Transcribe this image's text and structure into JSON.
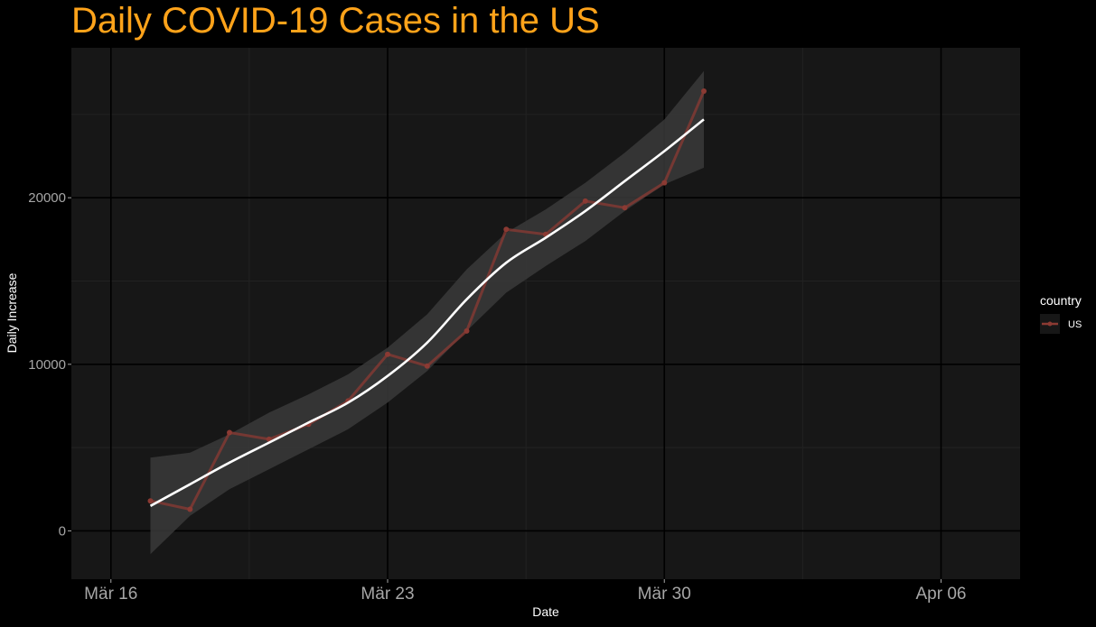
{
  "chart_data": {
    "type": "line",
    "title": "Daily COVID-19 Cases in the US",
    "xlabel": "Date",
    "ylabel": "Daily Increase",
    "x_ticks": [
      {
        "label": "Mär 16",
        "date": "2020-03-16"
      },
      {
        "label": "Mär 23",
        "date": "2020-03-23"
      },
      {
        "label": "Mär 30",
        "date": "2020-03-30"
      },
      {
        "label": "Apr 06",
        "date": "2020-04-06"
      }
    ],
    "y_ticks": [
      0,
      10000,
      20000
    ],
    "xlim": [
      "2020-03-15",
      "2020-04-08"
    ],
    "ylim": [
      -2900,
      29000
    ],
    "grid": true,
    "legend": {
      "title": "country",
      "placement": "right"
    },
    "series": [
      {
        "name": "US",
        "color": "#8b3a33",
        "points": [
          {
            "x": "2020-03-17",
            "y": 1800
          },
          {
            "x": "2020-03-18",
            "y": 1300
          },
          {
            "x": "2020-03-19",
            "y": 5900
          },
          {
            "x": "2020-03-20",
            "y": 5500
          },
          {
            "x": "2020-03-21",
            "y": 6400
          },
          {
            "x": "2020-03-22",
            "y": 7800
          },
          {
            "x": "2020-03-23",
            "y": 10600
          },
          {
            "x": "2020-03-24",
            "y": 9900
          },
          {
            "x": "2020-03-25",
            "y": 12000
          },
          {
            "x": "2020-03-26",
            "y": 18100
          },
          {
            "x": "2020-03-27",
            "y": 17800
          },
          {
            "x": "2020-03-28",
            "y": 19800
          },
          {
            "x": "2020-03-29",
            "y": 19400
          },
          {
            "x": "2020-03-30",
            "y": 20900
          },
          {
            "x": "2020-03-31",
            "y": 26400
          }
        ]
      }
    ],
    "smooth": {
      "color": "#ffffff",
      "band_color": "#3a3a3a",
      "points": [
        {
          "x": "2020-03-17",
          "y": 1500,
          "lo": -1400,
          "hi": 4400
        },
        {
          "x": "2020-03-18",
          "y": 2800,
          "lo": 900,
          "hi": 4700
        },
        {
          "x": "2020-03-19",
          "y": 4100,
          "lo": 2500,
          "hi": 5800
        },
        {
          "x": "2020-03-20",
          "y": 5300,
          "lo": 3700,
          "hi": 7100
        },
        {
          "x": "2020-03-21",
          "y": 6500,
          "lo": 4900,
          "hi": 8200
        },
        {
          "x": "2020-03-22",
          "y": 7700,
          "lo": 6100,
          "hi": 9400
        },
        {
          "x": "2020-03-23",
          "y": 9300,
          "lo": 7700,
          "hi": 11000
        },
        {
          "x": "2020-03-24",
          "y": 11300,
          "lo": 9600,
          "hi": 13000
        },
        {
          "x": "2020-03-25",
          "y": 13900,
          "lo": 12000,
          "hi": 15700
        },
        {
          "x": "2020-03-26",
          "y": 16100,
          "lo": 14300,
          "hi": 17900
        },
        {
          "x": "2020-03-27",
          "y": 17600,
          "lo": 15900,
          "hi": 19300
        },
        {
          "x": "2020-03-28",
          "y": 19200,
          "lo": 17400,
          "hi": 20900
        },
        {
          "x": "2020-03-29",
          "y": 21000,
          "lo": 19200,
          "hi": 22700
        },
        {
          "x": "2020-03-30",
          "y": 22800,
          "lo": 20800,
          "hi": 24700
        },
        {
          "x": "2020-03-31",
          "y": 24700,
          "lo": 21800,
          "hi": 27600
        }
      ]
    }
  },
  "colors": {
    "background": "#000000",
    "panel": "#171717",
    "grid_major": "#000000",
    "grid_minor": "#222222",
    "title": "#ffa31a",
    "axis_text": "#a6a6a6",
    "axis_title": "#ffffff"
  }
}
